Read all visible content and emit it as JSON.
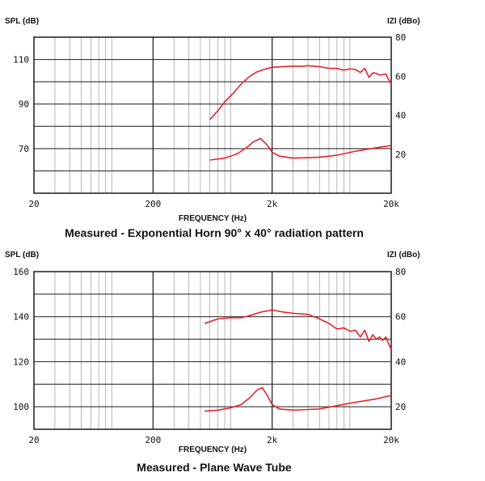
{
  "chart_data": [
    {
      "type": "line",
      "title": "Measured - Exponential Horn 90° x 40° radiation pattern",
      "xlabel": "FREQUENCY (Hz)",
      "ylabel": "SPL (dB)",
      "y2label": "IZI (dBo)",
      "x_scale": "log",
      "xlim": [
        20,
        20000
      ],
      "xticks": [
        20,
        200,
        2000,
        20000
      ],
      "xtick_labels": [
        "20",
        "200",
        "2k",
        "20k"
      ],
      "ylim": [
        50,
        120
      ],
      "yticks": [
        70,
        90,
        110
      ],
      "ytick_labels": [
        "70",
        "90",
        "110"
      ],
      "y2lim": [
        0,
        80
      ],
      "y2ticks": [
        20,
        40,
        60,
        80
      ],
      "y2tick_labels": [
        "20",
        "40",
        "60",
        "80"
      ],
      "grid": true,
      "series": [
        {
          "axis": "left",
          "color": "#e8212b",
          "points": [
            [
              600,
              83
            ],
            [
              700,
              87
            ],
            [
              800,
              91
            ],
            [
              950,
              95
            ],
            [
              1100,
              99
            ],
            [
              1300,
              102.5
            ],
            [
              1500,
              104.5
            ],
            [
              1700,
              105.5
            ],
            [
              2000,
              106.5
            ],
            [
              2500,
              106.8
            ],
            [
              3000,
              107
            ],
            [
              3500,
              106.9
            ],
            [
              4000,
              107.2
            ],
            [
              5000,
              106.8
            ],
            [
              6000,
              106
            ],
            [
              7000,
              106
            ],
            [
              8000,
              105.2
            ],
            [
              9000,
              105.8
            ],
            [
              10000,
              105.5
            ],
            [
              11000,
              104.2
            ],
            [
              12000,
              106
            ],
            [
              13000,
              102
            ],
            [
              14000,
              104
            ],
            [
              15000,
              103.8
            ],
            [
              16000,
              103
            ],
            [
              18000,
              103.5
            ],
            [
              19000,
              101
            ],
            [
              20000,
              99
            ]
          ]
        },
        {
          "axis": "right",
          "color": "#e8212b",
          "points": [
            [
              600,
              17
            ],
            [
              800,
              18
            ],
            [
              1000,
              20
            ],
            [
              1200,
              23
            ],
            [
              1400,
              26.5
            ],
            [
              1600,
              28
            ],
            [
              1800,
              25
            ],
            [
              2000,
              21
            ],
            [
              2300,
              19
            ],
            [
              3000,
              18
            ],
            [
              4000,
              18.2
            ],
            [
              5000,
              18.5
            ],
            [
              7000,
              19.5
            ],
            [
              10000,
              21.5
            ],
            [
              15000,
              23.3
            ],
            [
              20000,
              24.5
            ]
          ]
        }
      ]
    },
    {
      "type": "line",
      "title": "Measured - Plane Wave Tube",
      "xlabel": "FREQUENCY (Hz)",
      "ylabel": "SPL (dB)",
      "y2label": "IZI (dBo)",
      "x_scale": "log",
      "xlim": [
        20,
        20000
      ],
      "xticks": [
        20,
        200,
        2000,
        20000
      ],
      "xtick_labels": [
        "20",
        "200",
        "2k",
        "20k"
      ],
      "ylim": [
        90,
        160
      ],
      "yticks": [
        100,
        120,
        140,
        160
      ],
      "ytick_labels": [
        "100",
        "120",
        "140",
        "160"
      ],
      "y2lim": [
        10,
        80
      ],
      "y2ticks": [
        20,
        40,
        60,
        80
      ],
      "y2tick_labels": [
        "20",
        "40",
        "60",
        "80"
      ],
      "grid": true,
      "series": [
        {
          "axis": "left",
          "color": "#e8212b",
          "points": [
            [
              540,
              137
            ],
            [
              700,
              139
            ],
            [
              900,
              139.5
            ],
            [
              1100,
              139.5
            ],
            [
              1300,
              140.5
            ],
            [
              1600,
              142
            ],
            [
              2000,
              143
            ],
            [
              2500,
              142
            ],
            [
              3000,
              141.5
            ],
            [
              4000,
              141
            ],
            [
              5000,
              139
            ],
            [
              6000,
              137
            ],
            [
              7000,
              134.5
            ],
            [
              8000,
              135
            ],
            [
              9000,
              133.5
            ],
            [
              10000,
              134
            ],
            [
              11000,
              131
            ],
            [
              12000,
              134
            ],
            [
              13000,
              129
            ],
            [
              14000,
              132
            ],
            [
              15000,
              130
            ],
            [
              16000,
              131
            ],
            [
              17000,
              129.5
            ],
            [
              18000,
              131
            ],
            [
              19000,
              128
            ],
            [
              20000,
              125.5
            ]
          ]
        },
        {
          "axis": "right",
          "color": "#e8212b",
          "points": [
            [
              540,
              18
            ],
            [
              700,
              18.5
            ],
            [
              900,
              19.5
            ],
            [
              1100,
              21
            ],
            [
              1300,
              24
            ],
            [
              1500,
              27.5
            ],
            [
              1650,
              28.5
            ],
            [
              1800,
              25.5
            ],
            [
              2000,
              21
            ],
            [
              2300,
              19
            ],
            [
              3000,
              18.5
            ],
            [
              4000,
              18.8
            ],
            [
              5000,
              19
            ],
            [
              7000,
              20.5
            ],
            [
              10000,
              22
            ],
            [
              15000,
              23.5
            ],
            [
              20000,
              25
            ]
          ]
        }
      ]
    }
  ]
}
